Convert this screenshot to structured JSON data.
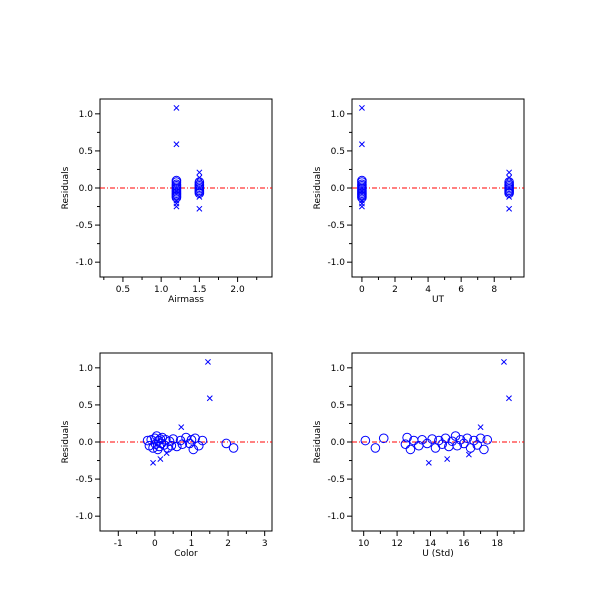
{
  "chart_data": [
    {
      "type": "scatter",
      "xlabel": "Airmass",
      "ylabel": "Residuals",
      "xlim": [
        0.2,
        2.45
      ],
      "ylim": [
        -1.2,
        1.2
      ],
      "xticks_major": [
        0.5,
        1.0,
        1.5,
        2.0
      ],
      "xtick_labels": [
        "0.5",
        "1.0",
        "1.5",
        "2.0"
      ],
      "xticks_minor": [
        0.25,
        0.75,
        1.25,
        1.75,
        2.25
      ],
      "yticks_major": [
        -1.0,
        -0.5,
        0.0,
        0.5,
        1.0
      ],
      "ytick_labels": [
        "-1.0",
        "-0.5",
        "0.0",
        "0.5",
        "1.0"
      ],
      "yticks_minor": [
        -0.75,
        -0.25,
        0.25,
        0.75
      ],
      "reference_line_y": 0.0,
      "series": [
        {
          "marker": "circle",
          "points": [
            [
              1.2,
              0.1
            ],
            [
              1.2,
              0.08
            ],
            [
              1.2,
              0.05
            ],
            [
              1.2,
              0.03
            ],
            [
              1.2,
              0.01
            ],
            [
              1.2,
              -0.01
            ],
            [
              1.2,
              -0.03
            ],
            [
              1.2,
              -0.05
            ],
            [
              1.2,
              -0.07
            ],
            [
              1.2,
              -0.09
            ],
            [
              1.2,
              -0.11
            ],
            [
              1.2,
              -0.13
            ],
            [
              1.5,
              0.08
            ],
            [
              1.5,
              0.05
            ],
            [
              1.5,
              0.03
            ],
            [
              1.5,
              0.01
            ],
            [
              1.5,
              -0.01
            ],
            [
              1.5,
              -0.03
            ],
            [
              1.5,
              -0.05
            ],
            [
              1.5,
              -0.07
            ]
          ]
        },
        {
          "marker": "x",
          "points": [
            [
              1.2,
              1.08
            ],
            [
              1.2,
              0.59
            ],
            [
              1.2,
              -0.17
            ],
            [
              1.2,
              -0.21
            ],
            [
              1.2,
              -0.25
            ],
            [
              1.5,
              0.21
            ],
            [
              1.5,
              0.14
            ],
            [
              1.5,
              -0.12
            ],
            [
              1.5,
              -0.28
            ]
          ]
        }
      ]
    },
    {
      "type": "scatter",
      "xlabel": "UT",
      "ylabel": "Residuals",
      "xlim": [
        -0.6,
        9.8
      ],
      "ylim": [
        -1.2,
        1.2
      ],
      "xticks_major": [
        0,
        2,
        4,
        6,
        8
      ],
      "xtick_labels": [
        "0",
        "2",
        "4",
        "6",
        "8"
      ],
      "xticks_minor": [
        1,
        3,
        5,
        7,
        9
      ],
      "yticks_major": [
        -1.0,
        -0.5,
        0.0,
        0.5,
        1.0
      ],
      "ytick_labels": [
        "-1.0",
        "-0.5",
        "0.0",
        "0.5",
        "1.0"
      ],
      "yticks_minor": [
        -0.75,
        -0.25,
        0.25,
        0.75
      ],
      "reference_line_y": 0.0,
      "series": [
        {
          "marker": "circle",
          "points": [
            [
              0.0,
              0.1
            ],
            [
              0.0,
              0.08
            ],
            [
              0.0,
              0.05
            ],
            [
              0.0,
              0.03
            ],
            [
              0.0,
              0.01
            ],
            [
              0.0,
              -0.01
            ],
            [
              0.0,
              -0.03
            ],
            [
              0.0,
              -0.05
            ],
            [
              0.0,
              -0.07
            ],
            [
              0.0,
              -0.09
            ],
            [
              0.0,
              -0.11
            ],
            [
              0.0,
              -0.13
            ],
            [
              8.9,
              0.08
            ],
            [
              8.9,
              0.05
            ],
            [
              8.9,
              0.03
            ],
            [
              8.9,
              0.01
            ],
            [
              8.9,
              -0.01
            ],
            [
              8.9,
              -0.03
            ],
            [
              8.9,
              -0.05
            ],
            [
              8.9,
              -0.07
            ]
          ]
        },
        {
          "marker": "x",
          "points": [
            [
              0.0,
              1.08
            ],
            [
              0.0,
              0.59
            ],
            [
              0.0,
              -0.17
            ],
            [
              0.0,
              -0.21
            ],
            [
              0.0,
              -0.25
            ],
            [
              8.9,
              0.21
            ],
            [
              8.9,
              0.14
            ],
            [
              8.9,
              -0.12
            ],
            [
              8.9,
              -0.28
            ]
          ]
        }
      ]
    },
    {
      "type": "scatter",
      "xlabel": "Color",
      "ylabel": "Residuals",
      "xlim": [
        -1.5,
        3.2
      ],
      "ylim": [
        -1.2,
        1.2
      ],
      "xticks_major": [
        -1,
        0,
        1,
        2,
        3
      ],
      "xtick_labels": [
        "-1",
        "0",
        "1",
        "2",
        "3"
      ],
      "xticks_minor": [
        -0.5,
        0.5,
        1.5,
        2.5
      ],
      "yticks_major": [
        -1.0,
        -0.5,
        0.0,
        0.5,
        1.0
      ],
      "ytick_labels": [
        "-1.0",
        "-0.5",
        "0.0",
        "0.5",
        "1.0"
      ],
      "yticks_minor": [
        -0.75,
        -0.25,
        0.25,
        0.75
      ],
      "reference_line_y": 0.0,
      "series": [
        {
          "marker": "circle",
          "points": [
            [
              -0.2,
              0.02
            ],
            [
              -0.15,
              -0.05
            ],
            [
              -0.1,
              0.03
            ],
            [
              -0.05,
              -0.08
            ],
            [
              0.0,
              0.05
            ],
            [
              0.02,
              -0.03
            ],
            [
              0.05,
              0.08
            ],
            [
              0.08,
              -0.1
            ],
            [
              0.1,
              0.02
            ],
            [
              0.12,
              -0.06
            ],
            [
              0.15,
              0.04
            ],
            [
              0.18,
              -0.02
            ],
            [
              0.2,
              0.06
            ],
            [
              0.25,
              -0.04
            ],
            [
              0.3,
              0.03
            ],
            [
              0.35,
              -0.08
            ],
            [
              0.4,
              0.01
            ],
            [
              0.45,
              -0.05
            ],
            [
              0.5,
              0.04
            ],
            [
              0.6,
              -0.06
            ],
            [
              0.7,
              0.02
            ],
            [
              0.75,
              -0.03
            ],
            [
              0.85,
              0.06
            ],
            [
              0.95,
              -0.02
            ],
            [
              1.0,
              0.03
            ],
            [
              1.05,
              -0.1
            ],
            [
              1.1,
              0.05
            ],
            [
              1.2,
              -0.05
            ],
            [
              1.3,
              0.02
            ],
            [
              1.95,
              -0.02
            ],
            [
              2.15,
              -0.08
            ]
          ]
        },
        {
          "marker": "x",
          "points": [
            [
              1.45,
              1.08
            ],
            [
              1.5,
              0.59
            ],
            [
              0.72,
              0.2
            ],
            [
              -0.05,
              -0.28
            ],
            [
              0.15,
              -0.23
            ],
            [
              0.32,
              -0.15
            ]
          ]
        }
      ]
    },
    {
      "type": "scatter",
      "xlabel": "U (Std)",
      "ylabel": "Residuals",
      "xlim": [
        9.3,
        19.6
      ],
      "ylim": [
        -1.2,
        1.2
      ],
      "xticks_major": [
        10,
        12,
        14,
        16,
        18
      ],
      "xtick_labels": [
        "10",
        "12",
        "14",
        "16",
        "18"
      ],
      "xticks_minor": [
        11,
        13,
        15,
        17,
        19
      ],
      "yticks_major": [
        -1.0,
        -0.5,
        0.0,
        0.5,
        1.0
      ],
      "ytick_labels": [
        "-1.0",
        "-0.5",
        "0.0",
        "0.5",
        "1.0"
      ],
      "yticks_minor": [
        -0.75,
        -0.25,
        0.25,
        0.75
      ],
      "reference_line_y": 0.0,
      "series": [
        {
          "marker": "circle",
          "points": [
            [
              10.1,
              0.02
            ],
            [
              10.7,
              -0.08
            ],
            [
              11.2,
              0.05
            ],
            [
              12.5,
              -0.03
            ],
            [
              12.6,
              0.06
            ],
            [
              12.8,
              -0.1
            ],
            [
              13.0,
              0.02
            ],
            [
              13.3,
              -0.05
            ],
            [
              13.5,
              0.03
            ],
            [
              13.8,
              -0.02
            ],
            [
              14.1,
              0.04
            ],
            [
              14.3,
              -0.08
            ],
            [
              14.5,
              0.02
            ],
            [
              14.7,
              -0.03
            ],
            [
              14.9,
              0.05
            ],
            [
              15.1,
              -0.06
            ],
            [
              15.3,
              0.01
            ],
            [
              15.5,
              0.08
            ],
            [
              15.6,
              -0.05
            ],
            [
              15.8,
              0.03
            ],
            [
              16.0,
              -0.02
            ],
            [
              16.2,
              0.05
            ],
            [
              16.4,
              -0.08
            ],
            [
              16.6,
              0.02
            ],
            [
              16.8,
              -0.04
            ],
            [
              17.0,
              0.05
            ],
            [
              17.2,
              -0.1
            ],
            [
              17.4,
              0.03
            ]
          ]
        },
        {
          "marker": "x",
          "points": [
            [
              18.4,
              1.08
            ],
            [
              18.7,
              0.59
            ],
            [
              17.0,
              0.2
            ],
            [
              13.9,
              -0.28
            ],
            [
              15.0,
              -0.23
            ],
            [
              16.3,
              -0.17
            ]
          ]
        }
      ]
    }
  ]
}
